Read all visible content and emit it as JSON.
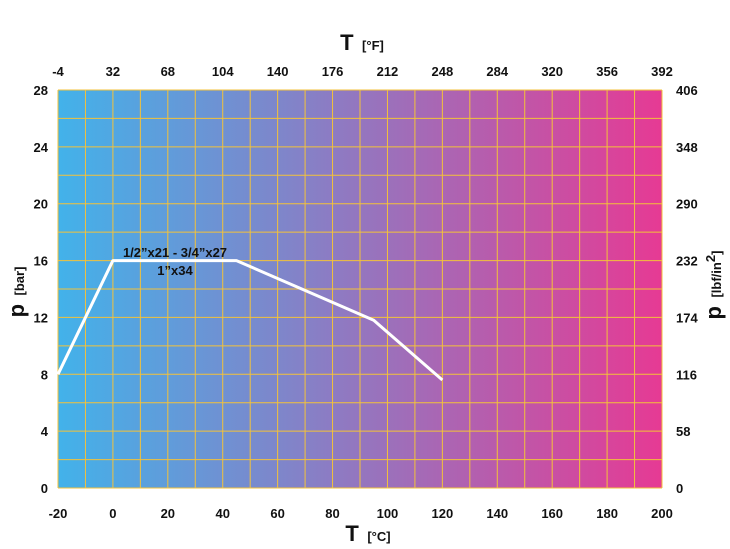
{
  "chart_data": {
    "type": "line",
    "series": [
      {
        "x": [
          -20,
          0,
          45,
          95,
          120
        ],
        "y": [
          8,
          16,
          16,
          11.8,
          7.6
        ]
      }
    ],
    "x_bottom": {
      "ticks": [
        -20,
        0,
        20,
        40,
        60,
        80,
        100,
        120,
        140,
        160,
        180,
        200
      ],
      "range": [
        -20,
        200
      ],
      "label_main": "T",
      "label_unit": "[°C]"
    },
    "x_top": {
      "ticks": [
        -4,
        32,
        68,
        104,
        140,
        176,
        212,
        248,
        284,
        320,
        356,
        392
      ],
      "label_main": "T",
      "label_unit": "[°F]"
    },
    "y_left": {
      "ticks": [
        0,
        4,
        8,
        12,
        16,
        20,
        24,
        28
      ],
      "range": [
        0,
        28
      ],
      "label_main": "p",
      "label_unit": "[bar]"
    },
    "y_right": {
      "ticks": [
        0,
        58,
        116,
        174,
        232,
        290,
        348,
        406
      ],
      "label_main": "p",
      "label_unit_pre": "[lbf/in",
      "label_unit_sup": "2",
      "label_unit_post": "]"
    },
    "annotations": [
      "1/2”x21 - 3/4”x27",
      "1”x34"
    ],
    "grid": true,
    "colors": {
      "gradient_start": "#42b2ea",
      "gradient_end": "#e63a94",
      "grid": "#f3c23a",
      "line": "#ffffff"
    }
  }
}
